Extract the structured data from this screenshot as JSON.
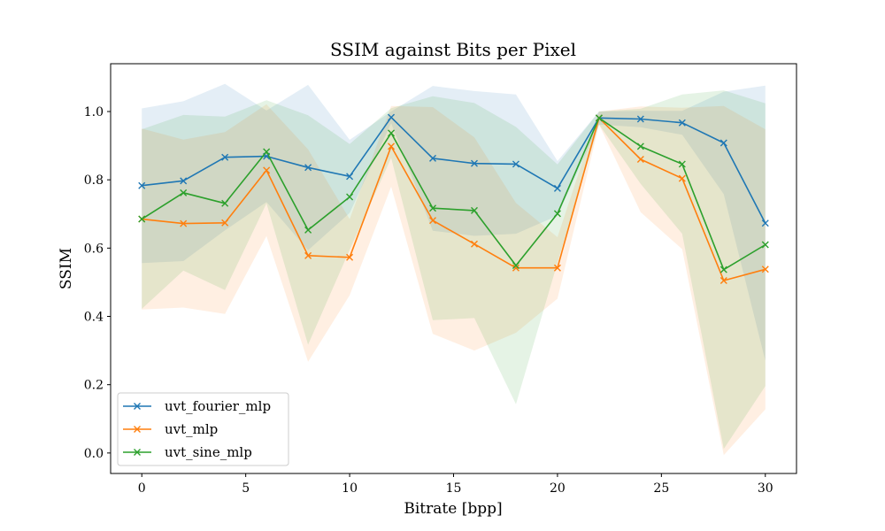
{
  "chart_data": {
    "type": "line",
    "title": "SSIM against Bits per Pixel",
    "xlabel": "Bitrate [bpp]",
    "ylabel": "SSIM",
    "xlim": [
      -1.5,
      31.5
    ],
    "ylim": [
      -0.06,
      1.14
    ],
    "xticks": [
      0,
      5,
      10,
      15,
      20,
      25,
      30
    ],
    "xtick_labels": [
      "0",
      "5",
      "10",
      "15",
      "20",
      "25",
      "30"
    ],
    "yticks": [
      0.0,
      0.2,
      0.4,
      0.6,
      0.8,
      1.0
    ],
    "ytick_labels": [
      "0.0",
      "0.2",
      "0.4",
      "0.6",
      "0.8",
      "1.0"
    ],
    "grid": false,
    "legend_position": "lower-left",
    "marker": "x",
    "x": [
      0,
      2,
      4,
      6,
      8,
      10,
      12,
      14,
      16,
      18,
      20,
      22,
      24,
      26,
      28,
      30
    ],
    "series": [
      {
        "name": "uvt_fourier_mlp",
        "color": "#1f77b4",
        "values": [
          0.783,
          0.797,
          0.866,
          0.869,
          0.836,
          0.81,
          0.983,
          0.863,
          0.848,
          0.846,
          0.775,
          0.981,
          0.978,
          0.967,
          0.908,
          0.673
        ],
        "upper": [
          1.009,
          1.03,
          1.081,
          1.003,
          1.078,
          0.917,
          1.0,
          1.075,
          1.06,
          1.05,
          0.855,
          1.0,
          1.002,
          1.002,
          1.058,
          1.076
        ],
        "lower": [
          0.556,
          0.562,
          0.652,
          0.735,
          0.594,
          0.703,
          0.966,
          0.651,
          0.636,
          0.642,
          0.695,
          0.962,
          0.954,
          0.932,
          0.758,
          0.27
        ]
      },
      {
        "name": "uvt_mlp",
        "color": "#ff7f0e",
        "values": [
          0.685,
          0.672,
          0.674,
          0.828,
          0.578,
          0.573,
          0.898,
          0.681,
          0.612,
          0.542,
          0.542,
          0.981,
          0.86,
          0.804,
          0.505,
          0.538
        ],
        "upper": [
          0.95,
          0.918,
          0.94,
          1.021,
          0.889,
          0.685,
          1.016,
          1.013,
          0.924,
          0.732,
          0.632,
          1.0,
          1.015,
          1.011,
          1.016,
          0.948
        ],
        "lower": [
          0.42,
          0.426,
          0.407,
          0.635,
          0.267,
          0.462,
          0.78,
          0.349,
          0.3,
          0.352,
          0.452,
          0.962,
          0.705,
          0.597,
          -0.006,
          0.128
        ]
      },
      {
        "name": "uvt_sine_mlp",
        "color": "#2ca02c",
        "values": [
          0.685,
          0.762,
          0.731,
          0.882,
          0.653,
          0.75,
          0.937,
          0.717,
          0.71,
          0.549,
          0.701,
          0.981,
          0.898,
          0.846,
          0.537,
          0.61
        ],
        "upper": [
          0.948,
          0.99,
          0.985,
          1.033,
          0.989,
          0.905,
          1.01,
          1.045,
          1.025,
          0.955,
          0.845,
          1.0,
          1.008,
          1.05,
          1.062,
          1.024
        ],
        "lower": [
          0.422,
          0.534,
          0.477,
          0.731,
          0.317,
          0.595,
          0.864,
          0.389,
          0.395,
          0.143,
          0.557,
          0.962,
          0.788,
          0.642,
          0.012,
          0.196
        ]
      }
    ]
  }
}
